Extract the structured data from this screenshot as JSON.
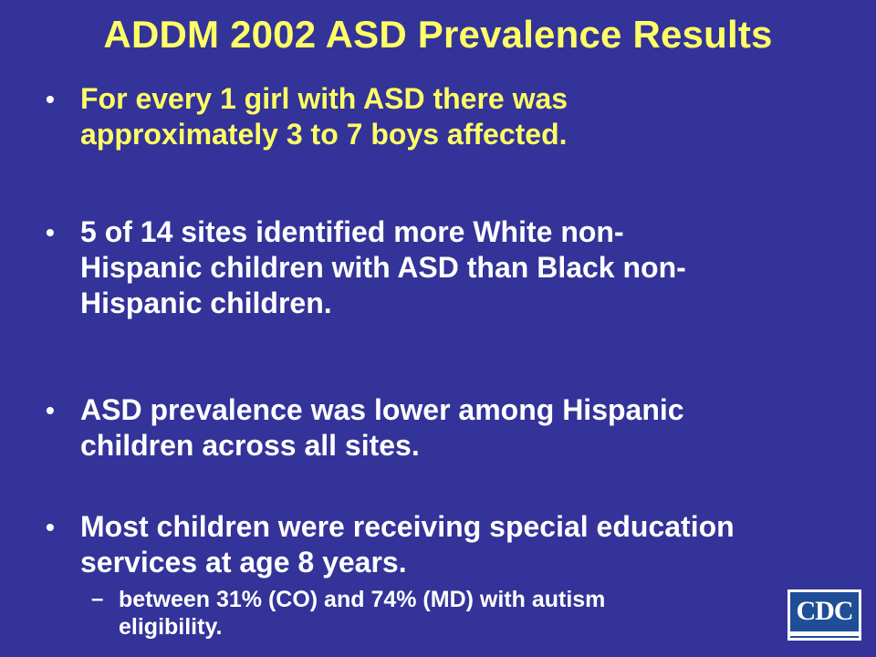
{
  "slide": {
    "title": "ADDM 2002 ASD Prevalence Results",
    "bullet_symbol": "•",
    "sub_symbol": "–",
    "bullets": [
      {
        "lines": [
          "For every 1 girl with ASD there was",
          "approximately 3 to 7 boys affected."
        ],
        "color": "#ffff66"
      },
      {
        "lines": [
          "5 of 14 sites identified more White non-",
          "Hispanic children with ASD than Black non-",
          "Hispanic children."
        ],
        "color": "#ffffff"
      },
      {
        "lines": [
          "ASD prevalence was lower among Hispanic",
          "children across all sites."
        ],
        "color": "#ffffff"
      },
      {
        "lines": [
          "Most children were receiving special education",
          "services at age 8 years."
        ],
        "color": "#ffffff"
      }
    ],
    "sub_bullet": {
      "lines": [
        "between 31% (CO) and 74% (MD) with autism",
        "eligibility."
      ]
    },
    "logo": {
      "text": "CDC"
    },
    "colors": {
      "background": "#333399",
      "title": "#ffff66",
      "body_text": "#ffffff",
      "logo_blue": "#1f4e96"
    }
  }
}
